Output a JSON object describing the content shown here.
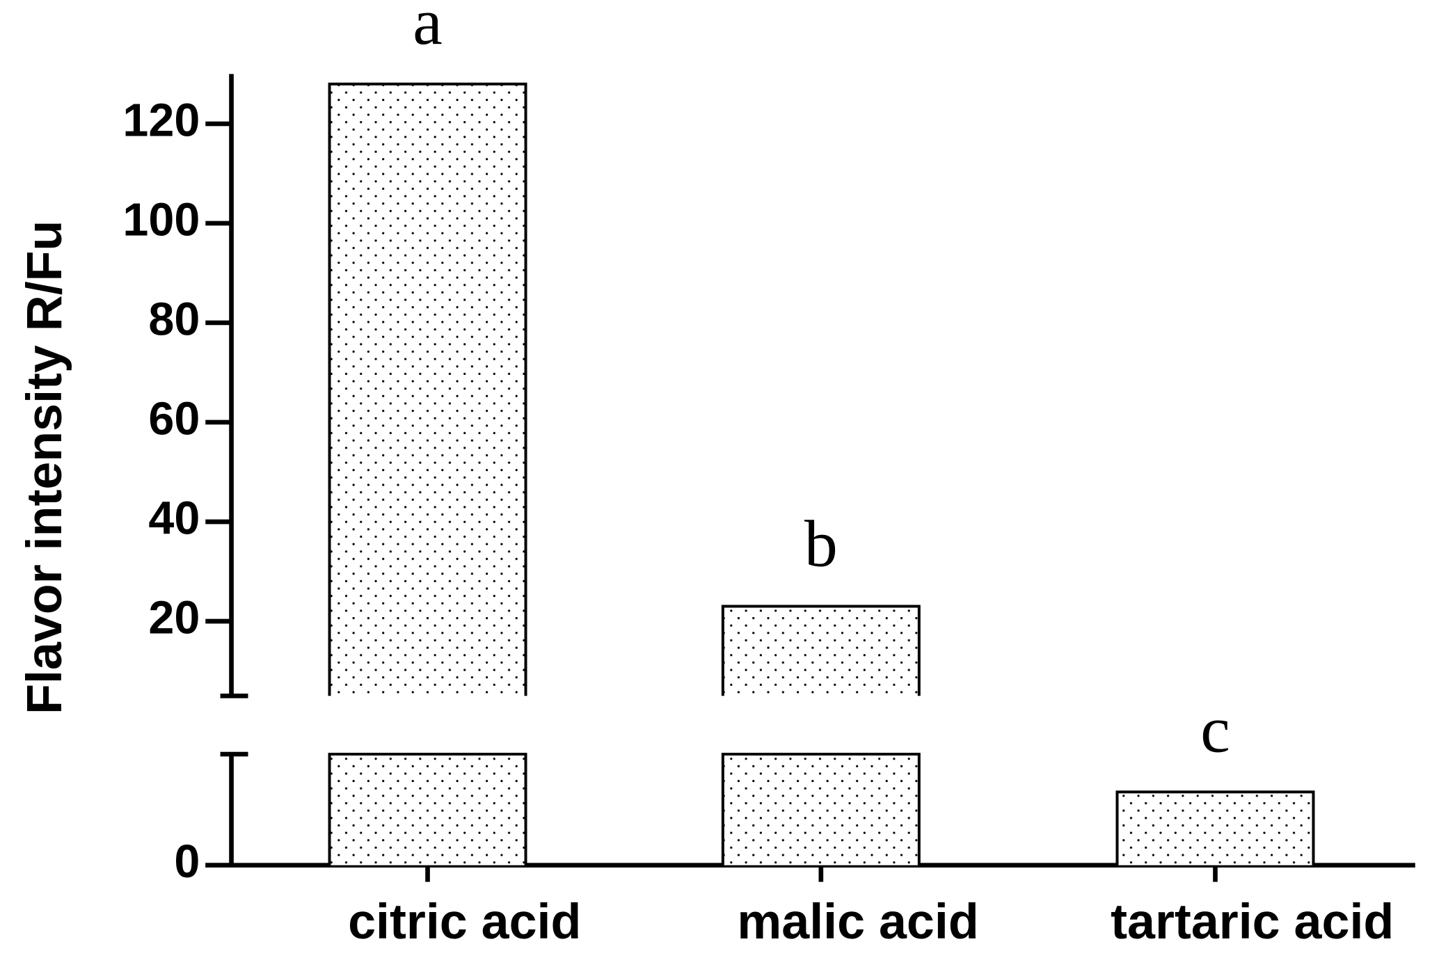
{
  "chart_data": {
    "type": "bar",
    "ylabel": "Flavor intensity R/Fu",
    "categories": [
      "citric acid",
      "malic acid",
      "tartaric acid"
    ],
    "values": [
      128,
      23,
      3.3
    ],
    "annotations": [
      "a",
      "b",
      "c"
    ],
    "color": "#ffffff",
    "ylim": [
      0,
      130
    ],
    "axis_segments": [
      {
        "ylim": [
          0,
          5
        ],
        "yticks": [
          0
        ]
      },
      {
        "ylim": [
          5,
          130
        ],
        "yticks": [
          20,
          40,
          60,
          80,
          100,
          120
        ]
      }
    ]
  }
}
